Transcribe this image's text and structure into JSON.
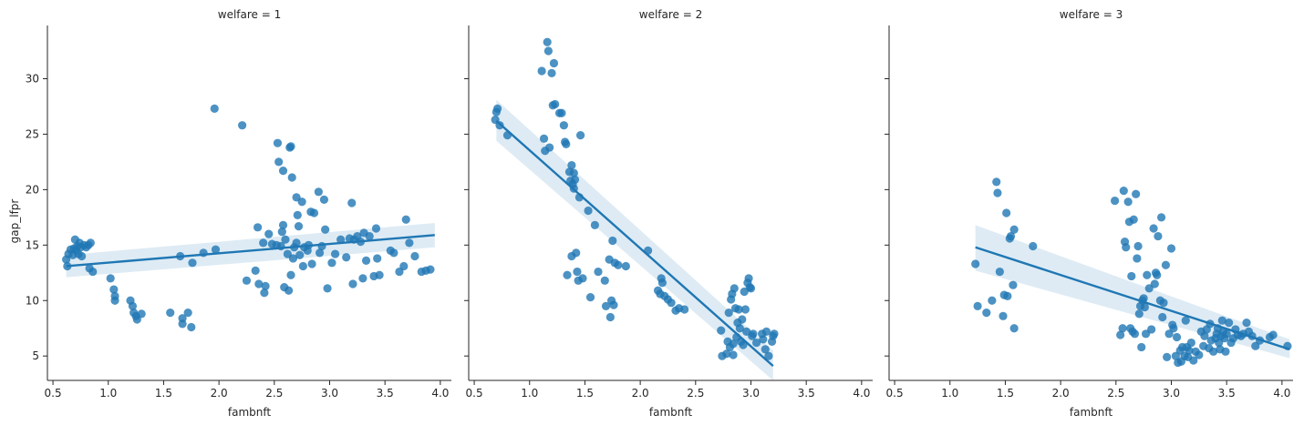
{
  "colors": {
    "point": "#1f77b4",
    "line": "#1f77b4",
    "band": "#1f77b4",
    "axis": "#262626"
  },
  "chart_data": [
    {
      "type": "scatter",
      "title": "welfare = 1",
      "xlabel": "fambnft",
      "ylabel": "gap_lfpr",
      "xlim": [
        0.45,
        4.1
      ],
      "ylim": [
        2.8,
        34.8
      ],
      "xticks": [
        0.5,
        1.0,
        1.5,
        2.0,
        2.5,
        3.0,
        3.5,
        4.0
      ],
      "xtick_labels": [
        "0.5",
        "1.0",
        "1.5",
        "2.0",
        "2.5",
        "3.0",
        "3.5",
        "4.0"
      ],
      "yticks": [
        5,
        10,
        15,
        20,
        25,
        30
      ],
      "ytick_labels": [
        "5",
        "10",
        "15",
        "20",
        "25",
        "30"
      ],
      "regression": {
        "x": [
          0.62,
          3.95
        ],
        "y": [
          13.1,
          15.9
        ],
        "ci_lower": [
          12.1,
          14.8
        ],
        "ci_upper": [
          14.1,
          17.0
        ]
      },
      "points": [
        [
          0.62,
          13.7
        ],
        [
          0.63,
          13.1
        ],
        [
          0.64,
          14.2
        ],
        [
          0.66,
          14.6
        ],
        [
          0.68,
          14.1
        ],
        [
          0.69,
          14.7
        ],
        [
          0.7,
          15.5
        ],
        [
          0.71,
          14.5
        ],
        [
          0.72,
          14.9
        ],
        [
          0.73,
          14.2
        ],
        [
          0.74,
          15.2
        ],
        [
          0.75,
          14.8
        ],
        [
          0.76,
          14.0
        ],
        [
          0.78,
          15.0
        ],
        [
          0.8,
          14.8
        ],
        [
          0.82,
          15.0
        ],
        [
          0.83,
          12.9
        ],
        [
          0.84,
          15.2
        ],
        [
          0.86,
          12.6
        ],
        [
          1.02,
          12.0
        ],
        [
          1.05,
          11.0
        ],
        [
          1.06,
          10.4
        ],
        [
          1.06,
          10.0
        ],
        [
          1.2,
          10.0
        ],
        [
          1.22,
          9.5
        ],
        [
          1.23,
          8.9
        ],
        [
          1.25,
          8.6
        ],
        [
          1.26,
          8.3
        ],
        [
          1.3,
          8.8
        ],
        [
          1.56,
          8.9
        ],
        [
          1.65,
          14.0
        ],
        [
          1.67,
          7.9
        ],
        [
          1.67,
          8.4
        ],
        [
          1.72,
          8.9
        ],
        [
          1.75,
          7.6
        ],
        [
          1.76,
          13.4
        ],
        [
          1.86,
          14.3
        ],
        [
          1.96,
          27.3
        ],
        [
          1.97,
          14.6
        ],
        [
          2.21,
          25.8
        ],
        [
          2.25,
          11.8
        ],
        [
          2.33,
          12.7
        ],
        [
          2.35,
          16.6
        ],
        [
          2.36,
          11.5
        ],
        [
          2.4,
          15.2
        ],
        [
          2.41,
          10.7
        ],
        [
          2.42,
          11.3
        ],
        [
          2.45,
          16.0
        ],
        [
          2.48,
          15.1
        ],
        [
          2.52,
          15.0
        ],
        [
          2.53,
          24.2
        ],
        [
          2.54,
          22.5
        ],
        [
          2.56,
          14.9
        ],
        [
          2.57,
          16.2
        ],
        [
          2.58,
          16.8
        ],
        [
          2.58,
          21.7
        ],
        [
          2.59,
          11.2
        ],
        [
          2.6,
          15.5
        ],
        [
          2.62,
          14.2
        ],
        [
          2.63,
          10.9
        ],
        [
          2.64,
          23.8
        ],
        [
          2.65,
          23.9
        ],
        [
          2.65,
          12.3
        ],
        [
          2.66,
          21.1
        ],
        [
          2.67,
          13.8
        ],
        [
          2.68,
          14.8
        ],
        [
          2.7,
          19.3
        ],
        [
          2.7,
          15.2
        ],
        [
          2.71,
          17.7
        ],
        [
          2.72,
          16.7
        ],
        [
          2.73,
          14.1
        ],
        [
          2.75,
          18.9
        ],
        [
          2.76,
          13.1
        ],
        [
          2.77,
          14.8
        ],
        [
          2.8,
          14.5
        ],
        [
          2.81,
          15.0
        ],
        [
          2.83,
          18.0
        ],
        [
          2.84,
          13.3
        ],
        [
          2.86,
          17.9
        ],
        [
          2.9,
          19.8
        ],
        [
          2.91,
          14.3
        ],
        [
          2.93,
          14.9
        ],
        [
          2.95,
          19.1
        ],
        [
          2.96,
          16.4
        ],
        [
          2.98,
          11.1
        ],
        [
          3.02,
          13.4
        ],
        [
          3.05,
          14.2
        ],
        [
          3.1,
          15.5
        ],
        [
          3.15,
          13.9
        ],
        [
          3.18,
          15.6
        ],
        [
          3.2,
          18.8
        ],
        [
          3.21,
          11.5
        ],
        [
          3.22,
          15.5
        ],
        [
          3.25,
          15.8
        ],
        [
          3.28,
          15.3
        ],
        [
          3.3,
          12.0
        ],
        [
          3.31,
          16.1
        ],
        [
          3.33,
          13.6
        ],
        [
          3.36,
          15.8
        ],
        [
          3.4,
          12.2
        ],
        [
          3.42,
          16.5
        ],
        [
          3.43,
          13.8
        ],
        [
          3.45,
          12.3
        ],
        [
          3.55,
          14.5
        ],
        [
          3.58,
          14.3
        ],
        [
          3.63,
          12.6
        ],
        [
          3.67,
          13.1
        ],
        [
          3.69,
          17.3
        ],
        [
          3.72,
          15.2
        ],
        [
          3.77,
          14.0
        ],
        [
          3.83,
          12.6
        ],
        [
          3.87,
          12.7
        ],
        [
          3.91,
          12.8
        ]
      ]
    },
    {
      "type": "scatter",
      "title": "welfare = 2",
      "xlabel": "fambnft",
      "ylabel": "",
      "xlim": [
        0.45,
        4.1
      ],
      "ylim": [
        2.8,
        34.8
      ],
      "xticks": [
        0.5,
        1.0,
        1.5,
        2.0,
        2.5,
        3.0,
        3.5,
        4.0
      ],
      "xtick_labels": [
        "0.5",
        "1.0",
        "1.5",
        "2.0",
        "2.5",
        "3.0",
        "3.5",
        "4.0"
      ],
      "yticks": [
        5,
        10,
        15,
        20,
        25,
        30
      ],
      "ytick_labels": [],
      "regression": {
        "x": [
          0.7,
          3.2
        ],
        "y": [
          26.2,
          4.1
        ],
        "ci_lower": [
          24.4,
          2.8
        ],
        "ci_upper": [
          28.1,
          5.5
        ]
      },
      "points": [
        [
          0.69,
          26.3
        ],
        [
          0.7,
          27.0
        ],
        [
          0.71,
          27.3
        ],
        [
          0.73,
          25.8
        ],
        [
          0.8,
          24.9
        ],
        [
          1.11,
          30.7
        ],
        [
          1.13,
          24.6
        ],
        [
          1.14,
          23.5
        ],
        [
          1.16,
          33.3
        ],
        [
          1.17,
          32.5
        ],
        [
          1.18,
          23.8
        ],
        [
          1.2,
          30.5
        ],
        [
          1.21,
          27.6
        ],
        [
          1.22,
          31.4
        ],
        [
          1.23,
          27.7
        ],
        [
          1.27,
          26.9
        ],
        [
          1.29,
          26.9
        ],
        [
          1.31,
          25.8
        ],
        [
          1.32,
          24.3
        ],
        [
          1.33,
          24.1
        ],
        [
          1.34,
          12.3
        ],
        [
          1.36,
          21.6
        ],
        [
          1.37,
          20.8
        ],
        [
          1.38,
          22.2
        ],
        [
          1.38,
          14.0
        ],
        [
          1.39,
          20.5
        ],
        [
          1.4,
          21.5
        ],
        [
          1.4,
          20.1
        ],
        [
          1.41,
          20.9
        ],
        [
          1.42,
          14.3
        ],
        [
          1.43,
          12.6
        ],
        [
          1.44,
          11.8
        ],
        [
          1.45,
          19.3
        ],
        [
          1.46,
          24.9
        ],
        [
          1.48,
          12.0
        ],
        [
          1.53,
          18.1
        ],
        [
          1.55,
          10.3
        ],
        [
          1.59,
          16.8
        ],
        [
          1.62,
          12.6
        ],
        [
          1.68,
          11.8
        ],
        [
          1.69,
          9.5
        ],
        [
          1.72,
          13.7
        ],
        [
          1.73,
          8.5
        ],
        [
          1.75,
          15.4
        ],
        [
          1.74,
          10.0
        ],
        [
          1.76,
          9.6
        ],
        [
          1.77,
          13.4
        ],
        [
          1.8,
          13.2
        ],
        [
          1.87,
          13.1
        ],
        [
          2.07,
          14.5
        ],
        [
          2.16,
          10.9
        ],
        [
          2.18,
          10.6
        ],
        [
          2.19,
          12.0
        ],
        [
          2.2,
          11.6
        ],
        [
          2.22,
          10.4
        ],
        [
          2.25,
          10.1
        ],
        [
          2.28,
          9.8
        ],
        [
          2.32,
          9.1
        ],
        [
          2.35,
          9.3
        ],
        [
          2.4,
          9.2
        ],
        [
          2.73,
          7.3
        ],
        [
          2.74,
          5.0
        ],
        [
          2.78,
          5.2
        ],
        [
          2.79,
          6.3
        ],
        [
          2.8,
          8.9
        ],
        [
          2.81,
          5.8
        ],
        [
          2.82,
          10.1
        ],
        [
          2.83,
          10.6
        ],
        [
          2.84,
          6.1
        ],
        [
          2.84,
          5.1
        ],
        [
          2.85,
          11.1
        ],
        [
          2.86,
          9.3
        ],
        [
          2.87,
          6.7
        ],
        [
          2.88,
          8.0
        ],
        [
          2.89,
          9.2
        ],
        [
          2.9,
          7.5
        ],
        [
          2.91,
          6.3
        ],
        [
          2.92,
          8.3
        ],
        [
          2.93,
          6.0
        ],
        [
          2.94,
          10.8
        ],
        [
          2.95,
          9.2
        ],
        [
          2.96,
          7.2
        ],
        [
          2.97,
          11.6
        ],
        [
          2.98,
          12.0
        ],
        [
          2.99,
          11.2
        ],
        [
          3.0,
          11.1
        ],
        [
          3.01,
          6.8
        ],
        [
          3.02,
          7.0
        ],
        [
          3.05,
          6.2
        ],
        [
          3.1,
          7.0
        ],
        [
          3.11,
          6.5
        ],
        [
          3.13,
          5.6
        ],
        [
          3.14,
          7.2
        ],
        [
          3.16,
          5.0
        ],
        [
          3.19,
          6.3
        ],
        [
          3.2,
          6.8
        ],
        [
          3.21,
          7.0
        ]
      ]
    },
    {
      "type": "scatter",
      "title": "welfare = 3",
      "xlabel": "fambnft",
      "ylabel": "",
      "xlim": [
        0.45,
        4.1
      ],
      "ylim": [
        2.8,
        34.8
      ],
      "xticks": [
        0.5,
        1.0,
        1.5,
        2.0,
        2.5,
        3.0,
        3.5,
        4.0
      ],
      "xtick_labels": [
        "0.5",
        "1.0",
        "1.5",
        "2.0",
        "2.5",
        "3.0",
        "3.5",
        "4.0"
      ],
      "yticks": [
        5,
        10,
        15,
        20,
        25,
        30
      ],
      "ytick_labels": [],
      "regression": {
        "x": [
          1.23,
          4.07
        ],
        "y": [
          14.8,
          5.6
        ],
        "ci_lower": [
          12.7,
          4.8
        ],
        "ci_upper": [
          16.8,
          6.5
        ]
      },
      "points": [
        [
          1.23,
          13.3
        ],
        [
          1.25,
          9.5
        ],
        [
          1.33,
          8.9
        ],
        [
          1.38,
          10.0
        ],
        [
          1.42,
          20.7
        ],
        [
          1.43,
          19.7
        ],
        [
          1.45,
          12.6
        ],
        [
          1.48,
          8.6
        ],
        [
          1.49,
          10.5
        ],
        [
          1.51,
          17.9
        ],
        [
          1.52,
          10.4
        ],
        [
          1.54,
          15.6
        ],
        [
          1.55,
          15.8
        ],
        [
          1.57,
          11.4
        ],
        [
          1.58,
          16.4
        ],
        [
          1.58,
          7.5
        ],
        [
          1.75,
          14.9
        ],
        [
          2.49,
          19.0
        ],
        [
          2.54,
          6.9
        ],
        [
          2.56,
          7.5
        ],
        [
          2.57,
          19.9
        ],
        [
          2.58,
          15.3
        ],
        [
          2.59,
          14.8
        ],
        [
          2.61,
          18.9
        ],
        [
          2.62,
          17.1
        ],
        [
          2.63,
          7.5
        ],
        [
          2.64,
          12.2
        ],
        [
          2.65,
          7.2
        ],
        [
          2.66,
          17.3
        ],
        [
          2.67,
          7.0
        ],
        [
          2.68,
          19.6
        ],
        [
          2.69,
          13.8
        ],
        [
          2.7,
          14.9
        ],
        [
          2.71,
          8.8
        ],
        [
          2.72,
          9.5
        ],
        [
          2.73,
          5.8
        ],
        [
          2.74,
          10.0
        ],
        [
          2.75,
          10.2
        ],
        [
          2.76,
          9.4
        ],
        [
          2.77,
          7.0
        ],
        [
          2.78,
          12.3
        ],
        [
          2.8,
          11.1
        ],
        [
          2.82,
          7.4
        ],
        [
          2.84,
          16.5
        ],
        [
          2.85,
          11.5
        ],
        [
          2.86,
          12.5
        ],
        [
          2.87,
          12.3
        ],
        [
          2.88,
          15.8
        ],
        [
          2.9,
          10.0
        ],
        [
          2.91,
          17.5
        ],
        [
          2.92,
          8.5
        ],
        [
          2.93,
          9.8
        ],
        [
          2.95,
          13.2
        ],
        [
          2.96,
          4.9
        ],
        [
          2.98,
          7.0
        ],
        [
          3.0,
          14.7
        ],
        [
          3.01,
          7.8
        ],
        [
          3.02,
          7.5
        ],
        [
          3.04,
          5.0
        ],
        [
          3.05,
          6.7
        ],
        [
          3.06,
          4.4
        ],
        [
          3.08,
          5.5
        ],
        [
          3.09,
          4.5
        ],
        [
          3.1,
          5.8
        ],
        [
          3.12,
          5.0
        ],
        [
          3.13,
          8.2
        ],
        [
          3.14,
          5.8
        ],
        [
          3.15,
          4.9
        ],
        [
          3.16,
          5.5
        ],
        [
          3.18,
          6.2
        ],
        [
          3.2,
          4.6
        ],
        [
          3.22,
          5.4
        ],
        [
          3.25,
          5.1
        ],
        [
          3.27,
          7.2
        ],
        [
          3.29,
          5.9
        ],
        [
          3.3,
          6.8
        ],
        [
          3.32,
          7.4
        ],
        [
          3.34,
          5.7
        ],
        [
          3.35,
          7.9
        ],
        [
          3.36,
          6.4
        ],
        [
          3.38,
          5.4
        ],
        [
          3.4,
          6.6
        ],
        [
          3.41,
          7.0
        ],
        [
          3.42,
          7.5
        ],
        [
          3.43,
          6.2
        ],
        [
          3.44,
          5.6
        ],
        [
          3.45,
          6.8
        ],
        [
          3.46,
          8.2
        ],
        [
          3.47,
          7.2
        ],
        [
          3.48,
          6.6
        ],
        [
          3.49,
          5.4
        ],
        [
          3.5,
          7.0
        ],
        [
          3.52,
          8.0
        ],
        [
          3.54,
          6.2
        ],
        [
          3.56,
          6.6
        ],
        [
          3.58,
          7.4
        ],
        [
          3.6,
          6.9
        ],
        [
          3.63,
          6.8
        ],
        [
          3.65,
          7.0
        ],
        [
          3.68,
          8.0
        ],
        [
          3.7,
          7.2
        ],
        [
          3.73,
          6.8
        ],
        [
          3.76,
          5.9
        ],
        [
          3.8,
          6.4
        ],
        [
          3.89,
          6.7
        ],
        [
          3.92,
          6.9
        ],
        [
          4.05,
          5.9
        ]
      ]
    }
  ]
}
